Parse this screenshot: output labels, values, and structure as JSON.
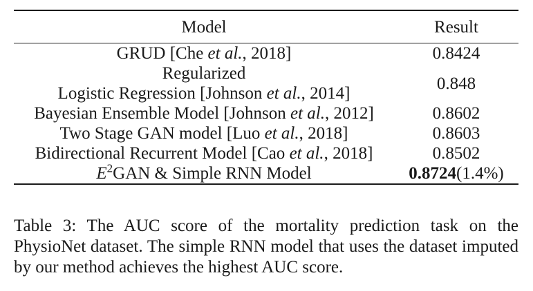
{
  "table": {
    "headers": {
      "model": "Model",
      "result": "Result"
    },
    "rows": [
      {
        "model_lines": [
          {
            "pre": "GRUD [Che ",
            "em": "et al.",
            "post": ", 2018]"
          }
        ],
        "result": "0.8424"
      },
      {
        "model_lines": [
          {
            "pre": "Regularized",
            "em": "",
            "post": ""
          },
          {
            "pre": "Logistic Regression [Johnson ",
            "em": "et al.",
            "post": ", 2014]"
          }
        ],
        "result": "0.848"
      },
      {
        "model_lines": [
          {
            "pre": "Bayesian Ensemble Model [Johnson ",
            "em": "et al.",
            "post": ", 2012]"
          }
        ],
        "result": "0.8602"
      },
      {
        "model_lines": [
          {
            "pre": "Two Stage GAN model [Luo ",
            "em": "et al.",
            "post": ", 2018]"
          }
        ],
        "result": "0.8603"
      },
      {
        "model_lines": [
          {
            "pre": "Bidirectional Recurrent Model [Cao ",
            "em": "et al.",
            "post": ", 2018]"
          }
        ],
        "result": "0.8502"
      },
      {
        "model_lines": [
          {
            "pre": "",
            "em": "E",
            "sup": "2",
            "post": "GAN & Simple RNN Model"
          }
        ],
        "result": "0.8724",
        "result_note": "(1.4%)",
        "best": true
      }
    ]
  },
  "caption": {
    "text": "Table 3: The AUC score of the mortality prediction task on the PhysioNet dataset. The simple RNN model that uses the dataset imputed by our method achieves the highest AUC score."
  }
}
